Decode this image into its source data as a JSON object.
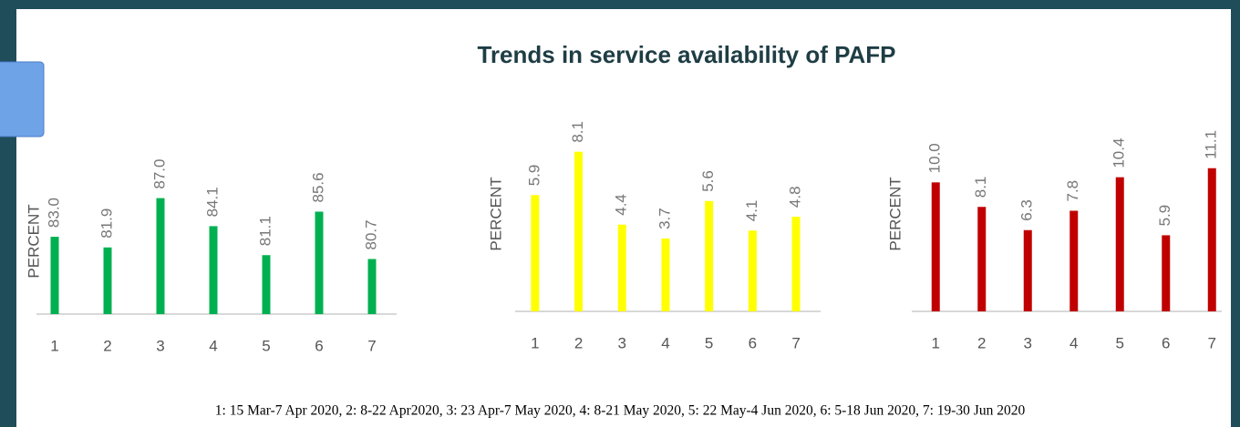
{
  "title": "Trends in service availability of PAFP",
  "note": "1: 15 Mar-7 Apr 2020, 2: 8-22 Apr2020, 3: 23 Apr-7 May 2020, 4: 8-21 May 2020, 5: 22 May-4 Jun 2020, 6: 5-18 Jun 2020, 7: 19-30 Jun 2020",
  "chart_data": [
    {
      "type": "bar",
      "y_label": "PERCENT",
      "categories": [
        "1",
        "2",
        "3",
        "4",
        "5",
        "6",
        "7"
      ],
      "values": [
        83.0,
        81.9,
        87.0,
        84.1,
        81.1,
        85.6,
        80.7
      ],
      "value_labels": [
        "83.0",
        "81.9",
        "87.0",
        "84.1",
        "81.1",
        "85.6",
        "80.7"
      ],
      "color": "#00b050",
      "ylim": [
        75,
        88
      ]
    },
    {
      "type": "bar",
      "y_label": "PERCENT",
      "categories": [
        "1",
        "2",
        "3",
        "4",
        "5",
        "6",
        "7"
      ],
      "values": [
        5.9,
        8.1,
        4.4,
        3.7,
        5.6,
        4.1,
        4.8
      ],
      "color": "#ffff00",
      "ylim": [
        0,
        8.5
      ]
    },
    {
      "type": "bar",
      "y_label": "PERCENT",
      "categories": [
        "1",
        "2",
        "3",
        "4",
        "5",
        "6",
        "7"
      ],
      "values": [
        10.0,
        8.1,
        6.3,
        7.8,
        10.4,
        5.9,
        11.1
      ],
      "value_labels": [
        "10.0",
        "8.1",
        "6.3",
        "7.8",
        "10.4",
        "5.9",
        "11.1"
      ],
      "color": "#c00000",
      "ylim": [
        0,
        12
      ]
    }
  ]
}
